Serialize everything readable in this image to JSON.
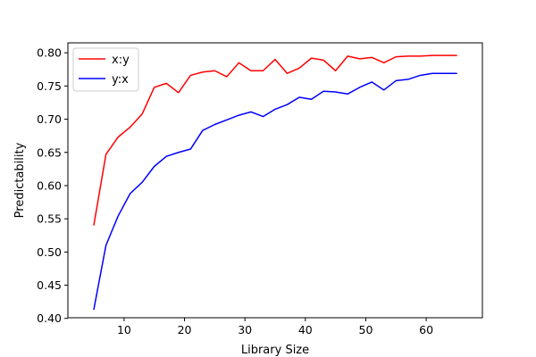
{
  "chart_data": {
    "type": "line",
    "xlabel": "Library Size",
    "ylabel": "Predictability",
    "xlim": [
      0.7,
      69.3
    ],
    "ylim": [
      0.401,
      0.815
    ],
    "xticks": [
      10,
      20,
      30,
      40,
      50,
      60
    ],
    "yticks": [
      0.4,
      0.45,
      0.5,
      0.55,
      0.6,
      0.65,
      0.7,
      0.75,
      0.8
    ],
    "ytick_labels": [
      "0.40",
      "0.45",
      "0.50",
      "0.55",
      "0.60",
      "0.65",
      "0.70",
      "0.75",
      "0.80"
    ],
    "grid": false,
    "legend_position": "top-left",
    "x": [
      5,
      7,
      9,
      11,
      13,
      15,
      17,
      19,
      21,
      23,
      25,
      27,
      29,
      31,
      33,
      35,
      37,
      39,
      41,
      43,
      45,
      47,
      49,
      51,
      53,
      55,
      57,
      59,
      61,
      63,
      65
    ],
    "series": [
      {
        "name": "x:y",
        "color": "#ff0000",
        "values": [
          0.541,
          0.647,
          0.673,
          0.688,
          0.708,
          0.748,
          0.754,
          0.74,
          0.766,
          0.771,
          0.773,
          0.764,
          0.785,
          0.773,
          0.773,
          0.79,
          0.769,
          0.777,
          0.792,
          0.789,
          0.773,
          0.795,
          0.791,
          0.793,
          0.785,
          0.794,
          0.795,
          0.795,
          0.796,
          0.796,
          0.796
        ]
      },
      {
        "name": "y:x",
        "color": "#0000ff",
        "values": [
          0.414,
          0.51,
          0.554,
          0.588,
          0.605,
          0.629,
          0.644,
          0.65,
          0.655,
          0.683,
          0.692,
          0.699,
          0.706,
          0.711,
          0.704,
          0.715,
          0.722,
          0.733,
          0.73,
          0.742,
          0.741,
          0.738,
          0.748,
          0.756,
          0.744,
          0.758,
          0.76,
          0.766,
          0.769,
          0.769,
          0.769
        ]
      }
    ]
  }
}
